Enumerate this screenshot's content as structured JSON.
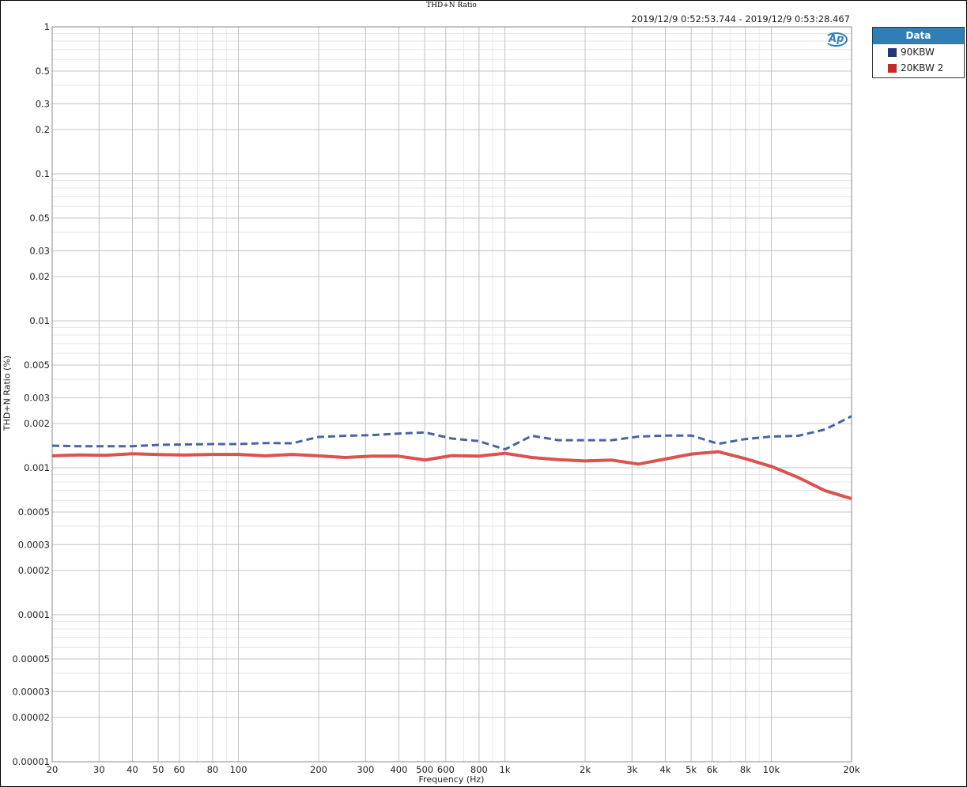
{
  "chart_data": {
    "type": "line",
    "title": "THD+N Ratio",
    "timestamp": "2019/12/9 0:52:53.744 - 2019/12/9 0:53:28.467",
    "xlabel": "Frequency (Hz)",
    "ylabel": "THD+N Ratio (%)",
    "xscale": "log",
    "yscale": "log",
    "xlim": [
      20,
      20000
    ],
    "ylim": [
      1e-05,
      1
    ],
    "grid": true,
    "legend_position": "outside-right",
    "legend_title": "Data",
    "x_ticks": [
      {
        "v": 20,
        "label": "20"
      },
      {
        "v": 30,
        "label": "30"
      },
      {
        "v": 40,
        "label": "40"
      },
      {
        "v": 50,
        "label": "50"
      },
      {
        "v": 60,
        "label": "60"
      },
      {
        "v": 80,
        "label": "80"
      },
      {
        "v": 100,
        "label": "100"
      },
      {
        "v": 200,
        "label": "200"
      },
      {
        "v": 300,
        "label": "300"
      },
      {
        "v": 400,
        "label": "400"
      },
      {
        "v": 500,
        "label": "500"
      },
      {
        "v": 600,
        "label": "600"
      },
      {
        "v": 800,
        "label": "800"
      },
      {
        "v": 1000,
        "label": "1k"
      },
      {
        "v": 2000,
        "label": "2k"
      },
      {
        "v": 3000,
        "label": "3k"
      },
      {
        "v": 4000,
        "label": "4k"
      },
      {
        "v": 5000,
        "label": "5k"
      },
      {
        "v": 6000,
        "label": "6k"
      },
      {
        "v": 8000,
        "label": "8k"
      },
      {
        "v": 10000,
        "label": "10k"
      },
      {
        "v": 20000,
        "label": "20k"
      }
    ],
    "y_ticks": [
      {
        "v": 1,
        "label": "1"
      },
      {
        "v": 0.5,
        "label": "0.5"
      },
      {
        "v": 0.3,
        "label": "0.3"
      },
      {
        "v": 0.2,
        "label": "0.2"
      },
      {
        "v": 0.1,
        "label": "0.1"
      },
      {
        "v": 0.05,
        "label": "0.05"
      },
      {
        "v": 0.03,
        "label": "0.03"
      },
      {
        "v": 0.02,
        "label": "0.02"
      },
      {
        "v": 0.01,
        "label": "0.01"
      },
      {
        "v": 0.005,
        "label": "0.005"
      },
      {
        "v": 0.003,
        "label": "0.003"
      },
      {
        "v": 0.002,
        "label": "0.002"
      },
      {
        "v": 0.001,
        "label": "0.001"
      },
      {
        "v": 0.0005,
        "label": "0.0005"
      },
      {
        "v": 0.0003,
        "label": "0.0003"
      },
      {
        "v": 0.0002,
        "label": "0.0002"
      },
      {
        "v": 0.0001,
        "label": "0.0001"
      },
      {
        "v": 5e-05,
        "label": "0.00005"
      },
      {
        "v": 3e-05,
        "label": "0.00003"
      },
      {
        "v": 2e-05,
        "label": "0.00002"
      },
      {
        "v": 1e-05,
        "label": "0.00001"
      }
    ],
    "x": [
      20,
      25.2,
      31.7,
      39.9,
      50.2,
      63.2,
      79.6,
      100.2,
      126,
      159,
      200,
      252,
      317,
      399,
      502,
      632,
      796,
      1002,
      1262,
      1589,
      2000,
      2518,
      3170,
      3991,
      5024,
      6325,
      7962,
      10024,
      12619,
      15887,
      20000
    ],
    "series": [
      {
        "name": "90KBW",
        "color": "#1f3a7a",
        "line_color": "#4a64a0",
        "dash": true,
        "values": [
          0.001414,
          0.0014,
          0.001402,
          0.001402,
          0.001432,
          0.00144,
          0.00145,
          0.00145,
          0.001473,
          0.001468,
          0.001621,
          0.00165,
          0.001668,
          0.00171,
          0.00174,
          0.00158,
          0.00152,
          0.001335,
          0.00165,
          0.00154,
          0.00154,
          0.00154,
          0.00163,
          0.001656,
          0.001656,
          0.001455,
          0.001567,
          0.00163,
          0.00165,
          0.00182,
          0.002244
        ]
      },
      {
        "name": "20KBW 2",
        "color": "#c42828",
        "line_color": "#d9534f",
        "dash": false,
        "values": [
          0.001205,
          0.001224,
          0.001215,
          0.001245,
          0.00123,
          0.00122,
          0.001232,
          0.001232,
          0.001205,
          0.001232,
          0.001205,
          0.001175,
          0.0012,
          0.0012,
          0.00113,
          0.00121,
          0.0012,
          0.001254,
          0.001175,
          0.001136,
          0.001113,
          0.001127,
          0.00106,
          0.001146,
          0.00124,
          0.001286,
          0.001156,
          0.00102,
          0.000859,
          0.000699,
          0.000616
        ]
      }
    ]
  },
  "logo": "AP"
}
